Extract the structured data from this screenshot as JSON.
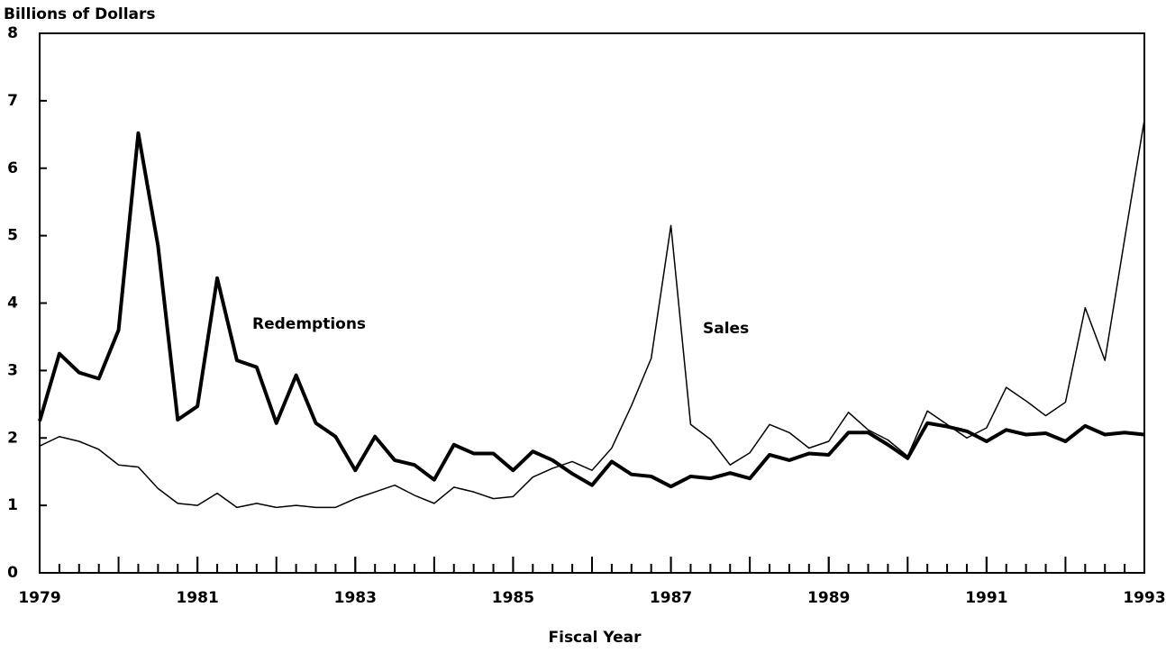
{
  "chart_data": {
    "type": "line",
    "title": "Billions of Dollars",
    "x_label": "Fiscal Year",
    "x": [
      1979,
      1979.25,
      1979.5,
      1979.75,
      1980,
      1980.25,
      1980.5,
      1980.75,
      1981,
      1981.25,
      1981.5,
      1981.75,
      1982,
      1982.25,
      1982.5,
      1982.75,
      1983,
      1983.25,
      1983.5,
      1983.75,
      1984,
      1984.25,
      1984.5,
      1984.75,
      1985,
      1985.25,
      1985.5,
      1985.75,
      1986,
      1986.25,
      1986.5,
      1986.75,
      1987,
      1987.25,
      1987.5,
      1987.75,
      1988,
      1988.25,
      1988.5,
      1988.75,
      1989,
      1989.25,
      1989.5,
      1989.75,
      1990,
      1990.25,
      1990.5,
      1990.75,
      1991,
      1991.25,
      1991.5,
      1991.75,
      1992,
      1992.25,
      1992.5,
      1992.75,
      1993
    ],
    "series": [
      {
        "name": "Redemptions",
        "color": "#000000",
        "width": 4,
        "values": [
          2.25,
          3.25,
          2.97,
          2.88,
          3.6,
          6.52,
          4.85,
          2.27,
          2.47,
          4.37,
          3.15,
          3.05,
          2.22,
          2.93,
          2.22,
          2.02,
          1.52,
          2.02,
          1.67,
          1.6,
          1.38,
          1.9,
          1.77,
          1.77,
          1.52,
          1.8,
          1.67,
          1.47,
          1.3,
          1.65,
          1.46,
          1.43,
          1.28,
          1.43,
          1.4,
          1.48,
          1.4,
          1.75,
          1.67,
          1.77,
          1.75,
          2.08,
          2.08,
          1.9,
          1.7,
          2.22,
          2.17,
          2.1,
          1.95,
          2.12,
          2.05,
          2.07,
          1.95,
          2.18,
          2.05,
          2.08,
          2.05
        ]
      },
      {
        "name": "Sales",
        "color": "#000000",
        "width": 1.5,
        "values": [
          1.88,
          2.02,
          1.95,
          1.83,
          1.6,
          1.57,
          1.25,
          1.03,
          1.0,
          1.18,
          0.97,
          1.03,
          0.97,
          1.0,
          0.97,
          0.97,
          1.1,
          1.2,
          1.3,
          1.15,
          1.03,
          1.27,
          1.2,
          1.1,
          1.13,
          1.42,
          1.55,
          1.65,
          1.52,
          1.85,
          2.48,
          3.18,
          5.15,
          2.2,
          1.98,
          1.6,
          1.78,
          2.2,
          2.08,
          1.85,
          1.95,
          2.38,
          2.12,
          1.97,
          1.73,
          2.4,
          2.2,
          2.0,
          2.15,
          2.75,
          2.55,
          2.33,
          2.53,
          3.93,
          3.15,
          4.95,
          6.72
        ]
      }
    ],
    "xlim": [
      1979,
      1993
    ],
    "xticks": [
      1979,
      1981,
      1983,
      1985,
      1987,
      1989,
      1991,
      1993
    ],
    "ylim": [
      0,
      8
    ],
    "yticks": [
      0,
      1,
      2,
      3,
      4,
      5,
      6,
      7,
      8
    ],
    "grid": false
  }
}
